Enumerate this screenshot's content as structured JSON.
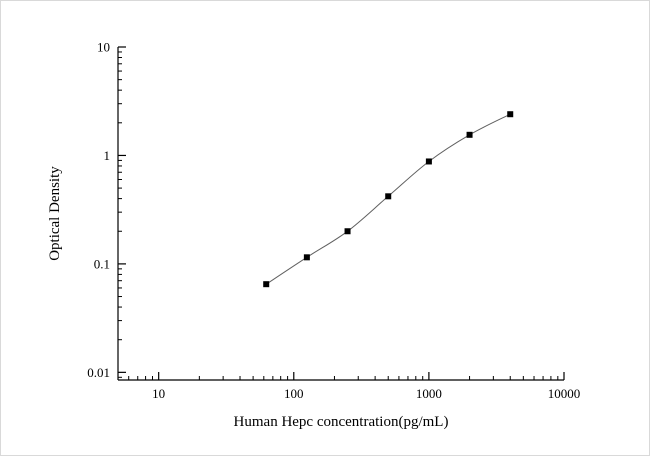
{
  "chart_data": {
    "type": "scatter",
    "subtype": "scatter-with-smooth-line",
    "title": "",
    "xlabel": "Human Hepc concentration(pg/mL)",
    "ylabel": "Optical Density",
    "x_scale": "log",
    "y_scale": "log",
    "xlim": [
      5,
      10000
    ],
    "ylim": [
      0.0085,
      10
    ],
    "x_ticks": [
      10,
      100,
      1000,
      10000
    ],
    "y_ticks": [
      0.01,
      0.1,
      1,
      10
    ],
    "x": [
      62.5,
      125,
      250,
      500,
      1000,
      2000,
      4000
    ],
    "y": [
      0.065,
      0.115,
      0.2,
      0.42,
      0.88,
      1.55,
      2.4
    ],
    "grid": false,
    "legend": false,
    "marker": "filled-square",
    "marker_color": "#000000",
    "line_color": "#606060",
    "axis_color": "#000000",
    "background_color": "#ffffff"
  }
}
